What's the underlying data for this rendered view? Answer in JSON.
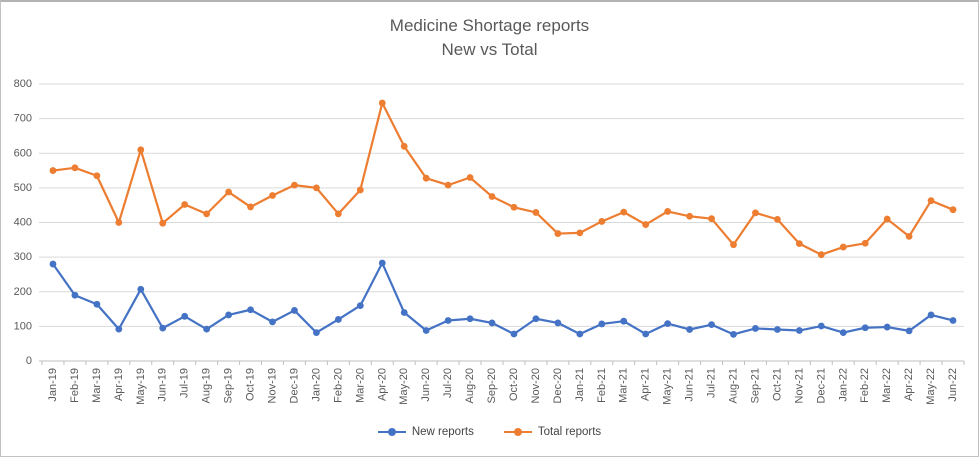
{
  "window": {
    "background": "#ffffff",
    "border_color": "#c2c2c2"
  },
  "chart": {
    "title_lines": [
      "Medicine Shortage reports",
      "New vs Total"
    ],
    "title_color": "#595959",
    "axis_label_color": "#595959",
    "gridline_color": "#d9d9d9",
    "axis_line_color": "#bfbfbf",
    "legend_items": [
      {
        "label": "New reports",
        "color": "#4472C4"
      },
      {
        "label": "Total reports",
        "color": "#ED7D31"
      }
    ]
  },
  "chart_data": {
    "type": "line",
    "title": "Medicine Shortage reports",
    "subtitle": "New vs Total",
    "categories": [
      "Jan-19",
      "Feb-19",
      "Mar-19",
      "Apr-19",
      "May-19",
      "Jun-19",
      "Jul-19",
      "Aug-19",
      "Sep-19",
      "Oct-19",
      "Nov-19",
      "Dec-19",
      "Jan-20",
      "Feb-20",
      "Mar-20",
      "Apr-20",
      "May-20",
      "Jun-20",
      "Jul-20",
      "Aug-20",
      "Sep-20",
      "Oct-20",
      "Nov-20",
      "Dec-20",
      "Jan-21",
      "Feb-21",
      "Mar-21",
      "Apr-21",
      "May-21",
      "Jun-21",
      "Jul-21",
      "Aug-21",
      "Sep-21",
      "Oct-21",
      "Nov-21",
      "Dec-21",
      "Jan-22",
      "Feb-22",
      "Mar-22",
      "Apr-22",
      "May-22",
      "Jun-22"
    ],
    "series": [
      {
        "name": "New reports",
        "color": "#4472C4",
        "values": [
          280,
          190,
          164,
          92,
          207,
          95,
          129,
          92,
          133,
          148,
          113,
          146,
          82,
          120,
          160,
          283,
          140,
          88,
          117,
          122,
          110,
          78,
          122,
          110,
          78,
          107,
          115,
          78,
          108,
          91,
          105,
          77,
          94,
          91,
          88,
          101,
          82,
          96,
          98,
          87,
          133,
          117
        ]
      },
      {
        "name": "Total reports",
        "color": "#ED7D31",
        "values": [
          550,
          558,
          535,
          400,
          610,
          398,
          452,
          425,
          488,
          445,
          478,
          508,
          500,
          425,
          494,
          745,
          620,
          528,
          508,
          530,
          475,
          444,
          429,
          368,
          370,
          403,
          430,
          394,
          432,
          418,
          411,
          336,
          428,
          409,
          339,
          307,
          329,
          340,
          410,
          360,
          463,
          437
        ]
      }
    ],
    "ylim": [
      0,
      800
    ],
    "yticks": [
      0,
      100,
      200,
      300,
      400,
      500,
      600,
      700,
      800
    ],
    "xlabel": "",
    "ylabel": "",
    "grid": true,
    "legend_position": "bottom",
    "x_tick_label_rotation_deg": 90
  }
}
